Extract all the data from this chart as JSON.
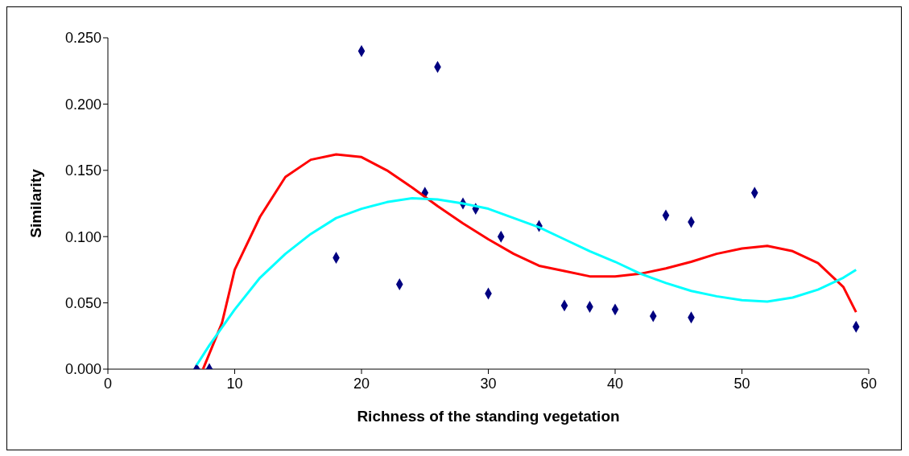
{
  "chart_data": {
    "type": "scatter",
    "xlabel": "Richness of the standing vegetation",
    "ylabel": "Similarity",
    "xlim": [
      0,
      60
    ],
    "xticks": [
      0,
      10,
      20,
      30,
      40,
      50,
      60
    ],
    "ylim": [
      0,
      0.25
    ],
    "yticks": [
      {
        "value": 0,
        "label": "0.000"
      },
      {
        "value": 0.05,
        "label": "0.050"
      },
      {
        "value": 0.1,
        "label": "0.100"
      },
      {
        "value": 0.15,
        "label": "0.150"
      },
      {
        "value": 0.2,
        "label": "0.200"
      },
      {
        "value": 0.25,
        "label": "0.250"
      }
    ],
    "grid": false,
    "legend": false,
    "series": [
      {
        "type": "scatter",
        "color": "#000080",
        "marker": "diamond",
        "x": [
          7,
          8,
          18,
          20,
          23,
          25,
          26,
          28,
          29,
          30,
          31,
          34,
          36,
          38,
          40,
          43,
          44,
          46,
          46,
          51,
          59
        ],
        "values": [
          0,
          0,
          0.084,
          0.24,
          0.064,
          0.133,
          0.228,
          0.125,
          0.121,
          0.057,
          0.1,
          0.108,
          0.048,
          0.047,
          0.045,
          0.04,
          0.116,
          0.111,
          0.039,
          0.133,
          0.032
        ]
      },
      {
        "type": "line",
        "color": "#ff0000",
        "marker": "none",
        "x": [
          7.5,
          9,
          10,
          12,
          14,
          16,
          18,
          20,
          22,
          24,
          26,
          28,
          30,
          32,
          34,
          36,
          38,
          40,
          42,
          44,
          46,
          48,
          50,
          52,
          54,
          56,
          58,
          59
        ],
        "values": [
          0,
          0.035,
          0.075,
          0.115,
          0.145,
          0.158,
          0.162,
          0.16,
          0.15,
          0.137,
          0.123,
          0.11,
          0.098,
          0.087,
          0.078,
          0.074,
          0.07,
          0.07,
          0.072,
          0.076,
          0.081,
          0.087,
          0.091,
          0.093,
          0.089,
          0.08,
          0.062,
          0.043
        ]
      },
      {
        "type": "line",
        "color": "#00ffff",
        "marker": "none",
        "x": [
          7,
          8,
          10,
          12,
          14,
          16,
          18,
          20,
          22,
          24,
          26,
          28,
          30,
          32,
          34,
          36,
          38,
          40,
          42,
          44,
          46,
          48,
          50,
          52,
          54,
          56,
          58,
          59
        ],
        "values": [
          0.003,
          0.018,
          0.045,
          0.069,
          0.087,
          0.102,
          0.114,
          0.121,
          0.126,
          0.129,
          0.128,
          0.125,
          0.121,
          0.114,
          0.107,
          0.098,
          0.089,
          0.081,
          0.072,
          0.065,
          0.059,
          0.055,
          0.052,
          0.051,
          0.054,
          0.06,
          0.069,
          0.075
        ]
      }
    ]
  }
}
